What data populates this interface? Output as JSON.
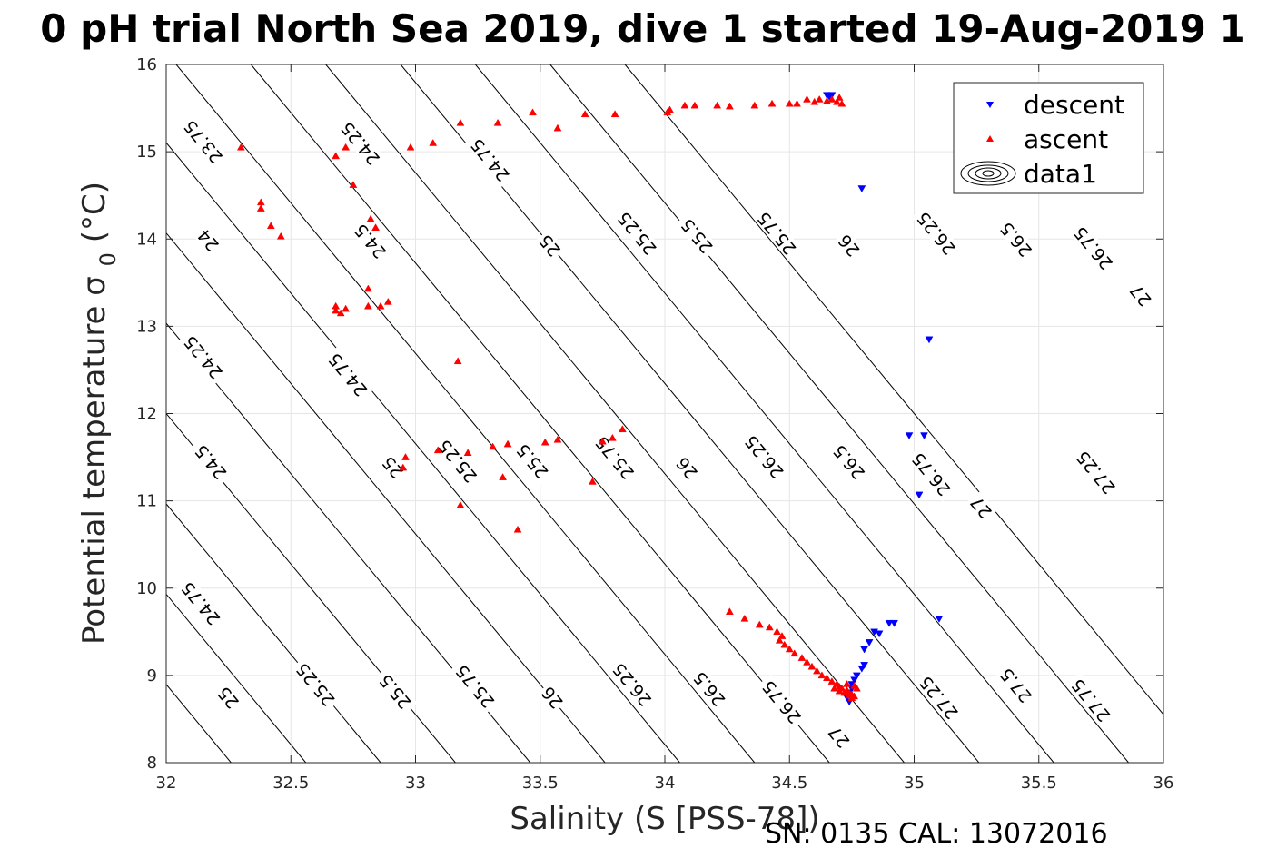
{
  "chart_data": {
    "type": "scatter",
    "title": "0 pH trial North Sea 2019, dive 1 started 19-Aug-2019 1",
    "xlabel": "Salinity (S [PSS-78])",
    "ylabel": "Potential temperature σ0 (°C)",
    "xlim": [
      32,
      36
    ],
    "ylim": [
      8,
      16
    ],
    "x_ticks": [
      32,
      32.5,
      33,
      33.5,
      34,
      34.5,
      35,
      35.5,
      36
    ],
    "y_ticks": [
      8,
      9,
      10,
      11,
      12,
      13,
      14,
      15,
      16
    ],
    "x_tick_labels": [
      "32",
      "32.5",
      "33",
      "33.5",
      "34",
      "34.5",
      "35",
      "35.5",
      "36"
    ],
    "y_tick_labels": [
      "8",
      "9",
      "10",
      "11",
      "12",
      "13",
      "14",
      "15",
      "16"
    ],
    "grid": true,
    "legend_position": "top-right",
    "footer": "SN: 0135  CAL: 13072016",
    "contours": {
      "levels": [
        23.75,
        24,
        24.25,
        24.5,
        24.75,
        25,
        25.25,
        25.5,
        25.75,
        26,
        26.25,
        26.5,
        26.75,
        27,
        27.25,
        27.5,
        27.75
      ],
      "labels": [
        {
          "text": "23.75",
          "s": 32.15,
          "t": 15.12
        },
        {
          "text": "24",
          "s": 32.17,
          "t": 13.99
        },
        {
          "text": "24.25",
          "s": 32.15,
          "t": 12.65
        },
        {
          "text": "24.5",
          "s": 32.18,
          "t": 11.45
        },
        {
          "text": "24.75",
          "s": 32.14,
          "t": 9.83
        },
        {
          "text": "25",
          "s": 32.25,
          "t": 8.75
        },
        {
          "text": "24.25",
          "s": 32.78,
          "t": 15.1
        },
        {
          "text": "24.5",
          "s": 32.82,
          "t": 13.98
        },
        {
          "text": "24.75",
          "s": 32.73,
          "t": 12.45
        },
        {
          "text": "25.25",
          "s": 32.6,
          "t": 8.9
        },
        {
          "text": "24.75",
          "s": 33.3,
          "t": 14.91
        },
        {
          "text": "25",
          "s": 32.91,
          "t": 11.39
        },
        {
          "text": "25.5",
          "s": 32.92,
          "t": 8.82
        },
        {
          "text": "25",
          "s": 33.54,
          "t": 13.93
        },
        {
          "text": "25.25",
          "s": 33.17,
          "t": 11.46
        },
        {
          "text": "25.75",
          "s": 33.24,
          "t": 8.88
        },
        {
          "text": "25.25",
          "s": 33.89,
          "t": 14.07
        },
        {
          "text": "25.5",
          "s": 33.47,
          "t": 11.46
        },
        {
          "text": "26",
          "s": 33.55,
          "t": 8.75
        },
        {
          "text": "25.5",
          "s": 34.13,
          "t": 14.04
        },
        {
          "text": "25.75",
          "s": 33.8,
          "t": 11.5
        },
        {
          "text": "26.25",
          "s": 33.87,
          "t": 8.9
        },
        {
          "text": "25.75",
          "s": 34.45,
          "t": 14.07
        },
        {
          "text": "26",
          "s": 34.09,
          "t": 11.38
        },
        {
          "text": "26.5",
          "s": 34.18,
          "t": 8.85
        },
        {
          "text": "26",
          "s": 34.74,
          "t": 13.93
        },
        {
          "text": "26.25",
          "s": 34.4,
          "t": 11.51
        },
        {
          "text": "26.75",
          "s": 34.47,
          "t": 8.7
        },
        {
          "text": "26.25",
          "s": 35.09,
          "t": 14.07
        },
        {
          "text": "26.5",
          "s": 34.74,
          "t": 11.45
        },
        {
          "text": "27",
          "s": 34.7,
          "t": 8.3
        },
        {
          "text": "26.5",
          "s": 35.41,
          "t": 14.0
        },
        {
          "text": "26.75",
          "s": 35.07,
          "t": 11.31
        },
        {
          "text": "27.25",
          "s": 35.1,
          "t": 8.75
        },
        {
          "text": "26.75",
          "s": 35.72,
          "t": 13.9
        },
        {
          "text": "27",
          "s": 35.27,
          "t": 10.93
        },
        {
          "text": "27.5",
          "s": 35.41,
          "t": 8.89
        },
        {
          "text": "27",
          "s": 35.91,
          "t": 13.36
        },
        {
          "text": "27.25",
          "s": 35.73,
          "t": 11.33
        },
        {
          "text": "27.75",
          "s": 35.71,
          "t": 8.72
        }
      ]
    },
    "series": [
      {
        "name": "descent",
        "color": "#0000ff",
        "marker": "triangle-down",
        "points": [
          [
            34.65,
            15.65
          ],
          [
            34.67,
            15.65
          ],
          [
            34.66,
            15.63
          ],
          [
            34.79,
            14.58
          ],
          [
            35.06,
            12.85
          ],
          [
            34.98,
            11.75
          ],
          [
            35.04,
            11.75
          ],
          [
            35.02,
            11.07
          ],
          [
            35.1,
            9.65
          ],
          [
            34.9,
            9.6
          ],
          [
            34.92,
            9.6
          ],
          [
            34.84,
            9.5
          ],
          [
            34.86,
            9.48
          ],
          [
            34.82,
            9.38
          ],
          [
            34.8,
            9.3
          ],
          [
            34.8,
            9.12
          ],
          [
            34.79,
            9.08
          ],
          [
            34.77,
            9.0
          ],
          [
            34.76,
            8.95
          ],
          [
            34.75,
            8.9
          ],
          [
            34.75,
            8.85
          ],
          [
            34.74,
            8.8
          ],
          [
            34.73,
            8.75
          ],
          [
            34.74,
            8.7
          ]
        ]
      },
      {
        "name": "ascent",
        "color": "#ff0000",
        "marker": "triangle-up",
        "points": [
          [
            32.3,
            15.05
          ],
          [
            32.68,
            14.95
          ],
          [
            32.72,
            15.05
          ],
          [
            32.75,
            14.62
          ],
          [
            32.98,
            15.05
          ],
          [
            33.07,
            15.1
          ],
          [
            33.18,
            15.33
          ],
          [
            33.33,
            15.33
          ],
          [
            33.47,
            15.45
          ],
          [
            33.57,
            15.27
          ],
          [
            33.68,
            15.43
          ],
          [
            33.8,
            15.43
          ],
          [
            34.01,
            15.45
          ],
          [
            34.02,
            15.48
          ],
          [
            34.08,
            15.53
          ],
          [
            34.12,
            15.53
          ],
          [
            34.21,
            15.53
          ],
          [
            34.26,
            15.52
          ],
          [
            34.36,
            15.53
          ],
          [
            34.43,
            15.55
          ],
          [
            34.5,
            15.55
          ],
          [
            34.53,
            15.55
          ],
          [
            34.57,
            15.6
          ],
          [
            34.6,
            15.57
          ],
          [
            34.62,
            15.6
          ],
          [
            34.65,
            15.58
          ],
          [
            34.67,
            15.6
          ],
          [
            34.69,
            15.57
          ],
          [
            34.71,
            15.55
          ],
          [
            34.7,
            15.62
          ],
          [
            32.38,
            14.42
          ],
          [
            32.38,
            14.35
          ],
          [
            32.42,
            14.15
          ],
          [
            32.46,
            14.03
          ],
          [
            32.82,
            14.23
          ],
          [
            32.84,
            14.13
          ],
          [
            32.68,
            13.23
          ],
          [
            32.68,
            13.18
          ],
          [
            32.7,
            13.15
          ],
          [
            32.72,
            13.2
          ],
          [
            32.81,
            13.43
          ],
          [
            32.81,
            13.23
          ],
          [
            32.86,
            13.23
          ],
          [
            32.89,
            13.28
          ],
          [
            33.17,
            12.6
          ],
          [
            32.96,
            11.5
          ],
          [
            32.95,
            11.38
          ],
          [
            33.09,
            11.58
          ],
          [
            33.21,
            11.55
          ],
          [
            33.18,
            10.95
          ],
          [
            33.31,
            11.62
          ],
          [
            33.37,
            11.65
          ],
          [
            33.35,
            11.27
          ],
          [
            33.41,
            10.67
          ],
          [
            33.52,
            11.67
          ],
          [
            33.57,
            11.7
          ],
          [
            33.71,
            11.22
          ],
          [
            33.75,
            11.68
          ],
          [
            33.79,
            11.72
          ],
          [
            33.83,
            11.82
          ],
          [
            34.26,
            9.73
          ],
          [
            34.32,
            9.65
          ],
          [
            34.38,
            9.58
          ],
          [
            34.42,
            9.55
          ],
          [
            34.45,
            9.5
          ],
          [
            34.47,
            9.45
          ],
          [
            34.46,
            9.4
          ],
          [
            34.48,
            9.35
          ],
          [
            34.5,
            9.3
          ],
          [
            34.52,
            9.25
          ],
          [
            34.55,
            9.2
          ],
          [
            34.57,
            9.15
          ],
          [
            34.59,
            9.1
          ],
          [
            34.61,
            9.05
          ],
          [
            34.63,
            9.0
          ],
          [
            34.65,
            8.97
          ],
          [
            34.67,
            8.93
          ],
          [
            34.69,
            8.9
          ],
          [
            34.7,
            8.87
          ],
          [
            34.71,
            8.85
          ],
          [
            34.73,
            8.83
          ],
          [
            34.74,
            8.8
          ],
          [
            34.75,
            8.78
          ],
          [
            34.76,
            8.76
          ],
          [
            34.75,
            8.74
          ],
          [
            34.74,
            8.77
          ],
          [
            34.72,
            8.8
          ],
          [
            34.7,
            8.82
          ],
          [
            34.68,
            8.85
          ],
          [
            34.73,
            8.9
          ],
          [
            34.76,
            8.88
          ],
          [
            34.77,
            8.85
          ]
        ]
      }
    ],
    "legend": {
      "entries": [
        "descent",
        "ascent",
        "data1"
      ]
    }
  }
}
